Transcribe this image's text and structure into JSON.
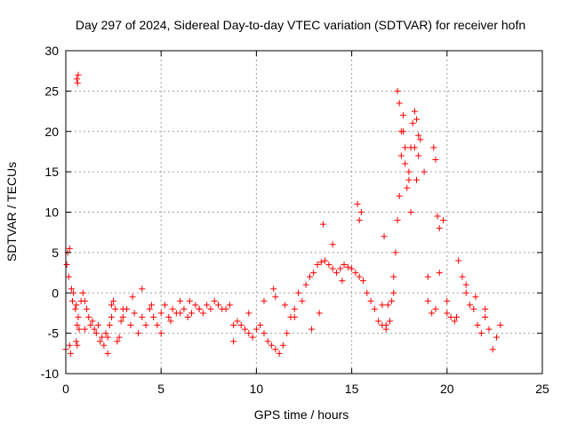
{
  "chart_data": {
    "type": "scatter",
    "title": "Day 297 of 2024, Sidereal Day-to-day VTEC variation (SDTVAR) for receiver hofn",
    "xlabel": "GPS time / hours",
    "ylabel": "SDTVAR / TECUs",
    "xlim": [
      0,
      25
    ],
    "ylim": [
      -10,
      30
    ],
    "xticks": [
      0,
      5,
      10,
      15,
      20,
      25
    ],
    "yticks": [
      -10,
      -5,
      0,
      5,
      10,
      15,
      20,
      25,
      30
    ],
    "grid": true,
    "marker": "+",
    "series_color": "#ff0000",
    "series": [
      {
        "name": "SDTVAR",
        "x": [
          0.0,
          0.05,
          0.1,
          0.15,
          0.2,
          0.25,
          0.3,
          0.35,
          0.4,
          0.5,
          0.55,
          0.6,
          0.65,
          0.7,
          0.8,
          0.9,
          1.0,
          1.1,
          1.2,
          1.3,
          1.4,
          1.5,
          1.6,
          1.7,
          1.8,
          1.9,
          2.0,
          2.1,
          2.2,
          2.3,
          2.4,
          2.5,
          2.6,
          2.7,
          2.8,
          2.9,
          3.0,
          3.2,
          3.4,
          3.6,
          3.8,
          4.0,
          4.2,
          4.4,
          4.6,
          4.8,
          5.0,
          5.2,
          5.4,
          5.6,
          5.8,
          6.0,
          6.2,
          6.4,
          6.6,
          6.8,
          7.0,
          7.2,
          7.4,
          7.6,
          7.8,
          8.0,
          8.2,
          8.4,
          8.6,
          8.8,
          9.0,
          9.2,
          9.4,
          9.6,
          9.8,
          10.0,
          10.2,
          10.4,
          10.6,
          10.8,
          11.0,
          11.2,
          11.4,
          11.6,
          11.8,
          12.0,
          12.2,
          12.4,
          12.6,
          12.8,
          13.0,
          13.2,
          13.4,
          13.6,
          13.8,
          14.0,
          14.2,
          14.4,
          14.6,
          14.8,
          15.0,
          15.2,
          15.4,
          15.6,
          15.8,
          16.0,
          16.2,
          16.4,
          16.6,
          16.8,
          17.0,
          17.1,
          17.2,
          17.3,
          17.4,
          17.5,
          17.6,
          17.7,
          17.8,
          17.9,
          18.0,
          18.1,
          18.2,
          18.3,
          18.4,
          18.5,
          18.6,
          18.8,
          19.0,
          19.2,
          19.4,
          19.6,
          19.8,
          20.0,
          20.2,
          20.4,
          20.6,
          20.8,
          21.0,
          21.2,
          21.4,
          21.6,
          21.8,
          22.0,
          22.2,
          22.4,
          22.6,
          22.8,
          0.55,
          0.6,
          0.65,
          0.58,
          0.62,
          17.4,
          17.5,
          17.6,
          17.7,
          17.8,
          18.0,
          18.1,
          18.3,
          18.4,
          18.5,
          19.3,
          19.4,
          19.5,
          15.5,
          15.4,
          15.3,
          13.5,
          14.0,
          14.5,
          11.0,
          11.5,
          12.0,
          3.0,
          3.5,
          4.0,
          4.5,
          5.0,
          5.5,
          6.0,
          6.5,
          7.0,
          16.6,
          16.7,
          16.8,
          22.0,
          21.5,
          21.0,
          20.5,
          20.0,
          19.6,
          19.0,
          2.2,
          2.4,
          8.8,
          9.6,
          10.4,
          10.9,
          12.9,
          13.3,
          17.2,
          16.9,
          0.2,
          1.0
        ],
        "y": [
          -7.0,
          3.5,
          5.0,
          2.0,
          -6.5,
          -7.5,
          0.5,
          -1.0,
          0.0,
          -2.0,
          -1.5,
          -4.0,
          -3.0,
          -4.5,
          -1.0,
          0.0,
          -1.0,
          -2.0,
          -3.0,
          -4.0,
          -3.5,
          -4.5,
          -5.0,
          -4.0,
          -6.0,
          -5.5,
          -6.5,
          -5.0,
          -7.5,
          -4.0,
          -3.0,
          -1.0,
          -2.0,
          -6.0,
          -5.5,
          -3.5,
          -3.0,
          -2.0,
          -4.0,
          -2.5,
          -5.0,
          -3.0,
          -4.0,
          -2.0,
          -3.0,
          -4.0,
          -2.5,
          -1.5,
          -3.0,
          -2.0,
          -2.5,
          -1.0,
          -2.0,
          -3.0,
          -2.5,
          -1.5,
          -2.0,
          -2.5,
          -1.5,
          -2.0,
          -1.0,
          -1.5,
          -2.0,
          -2.0,
          -1.5,
          -4.0,
          -3.5,
          -4.0,
          -4.5,
          -5.0,
          -5.5,
          -4.5,
          -4.0,
          -5.0,
          -6.0,
          -6.5,
          -7.0,
          -7.5,
          -6.5,
          -5.0,
          -3.0,
          -2.0,
          0.0,
          -1.0,
          1.0,
          2.0,
          2.5,
          3.5,
          3.8,
          4.0,
          3.5,
          3.0,
          2.5,
          3.0,
          3.5,
          3.2,
          3.0,
          2.5,
          2.0,
          1.5,
          0.0,
          -1.0,
          -2.0,
          -3.5,
          -4.0,
          -4.5,
          -3.5,
          -1.0,
          2.0,
          5.0,
          9.0,
          12.0,
          17.0,
          20.0,
          16.0,
          13.0,
          15.0,
          18.0,
          21.0,
          18.0,
          14.0,
          17.0,
          19.0,
          15.0,
          -1.0,
          -2.5,
          -2.0,
          8.0,
          9.0,
          -1.0,
          -3.0,
          -3.5,
          4.0,
          2.0,
          0.0,
          -1.5,
          -2.0,
          -4.0,
          -5.0,
          -3.0,
          -4.5,
          -7.0,
          -5.5,
          -4.0,
          -6.0,
          -6.5,
          27.0,
          26.5,
          26.0,
          25.0,
          23.5,
          20.0,
          22.0,
          18.0,
          14.0,
          10.0,
          22.5,
          21.5,
          19.5,
          18.0,
          16.5,
          9.5,
          10.0,
          9.0,
          11.0,
          8.5,
          6.0,
          1.5,
          -0.5,
          -1.5,
          -3.0,
          -2.0,
          -0.5,
          0.5,
          -1.5,
          -5.0,
          -3.5,
          -2.5,
          -1.0,
          -2.0,
          -1.5,
          7.0,
          -4.0,
          -2.0,
          -0.5,
          1.0,
          -3.0,
          -2.5,
          2.5,
          2.0,
          -5.5,
          -1.5,
          -6.0,
          -2.5,
          -1.0,
          0.5,
          -4.5,
          -2.5,
          0.0,
          -1.5,
          5.5,
          -4.5
        ]
      }
    ]
  }
}
